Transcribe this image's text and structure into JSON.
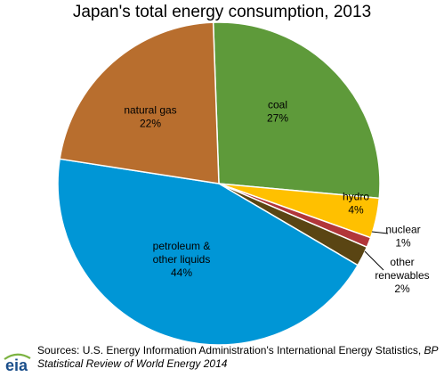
{
  "chart_data": {
    "type": "pie",
    "title": "Japan's total energy consumption, 2013",
    "slices": [
      {
        "label_lines": [
          "coal"
        ],
        "value": 27,
        "value_label": "27%",
        "color": "#5e9a3a"
      },
      {
        "label_lines": [
          "hydro"
        ],
        "value": 4,
        "value_label": "4%",
        "color": "#ffc000"
      },
      {
        "label_lines": [
          "nuclear"
        ],
        "value": 1,
        "value_label": "1%",
        "color": "#b2363a"
      },
      {
        "label_lines": [
          "other",
          "renewables"
        ],
        "value": 2,
        "value_label": "2%",
        "color": "#5a4513"
      },
      {
        "label_lines": [
          "petroleum &",
          "other liquids"
        ],
        "value": 44,
        "value_label": "44%",
        "color": "#0096d6"
      },
      {
        "label_lines": [
          "natural gas"
        ],
        "value": 22,
        "value_label": "22%",
        "color": "#b86e2e"
      }
    ]
  },
  "logo": {
    "text": "eia",
    "color": "#1b4f8b"
  },
  "source": {
    "text_plain": "Sources: U.S. Energy Information Administration's International Energy Statistics, ",
    "text_italic": "BP Statistical Review of World Energy 2014"
  }
}
